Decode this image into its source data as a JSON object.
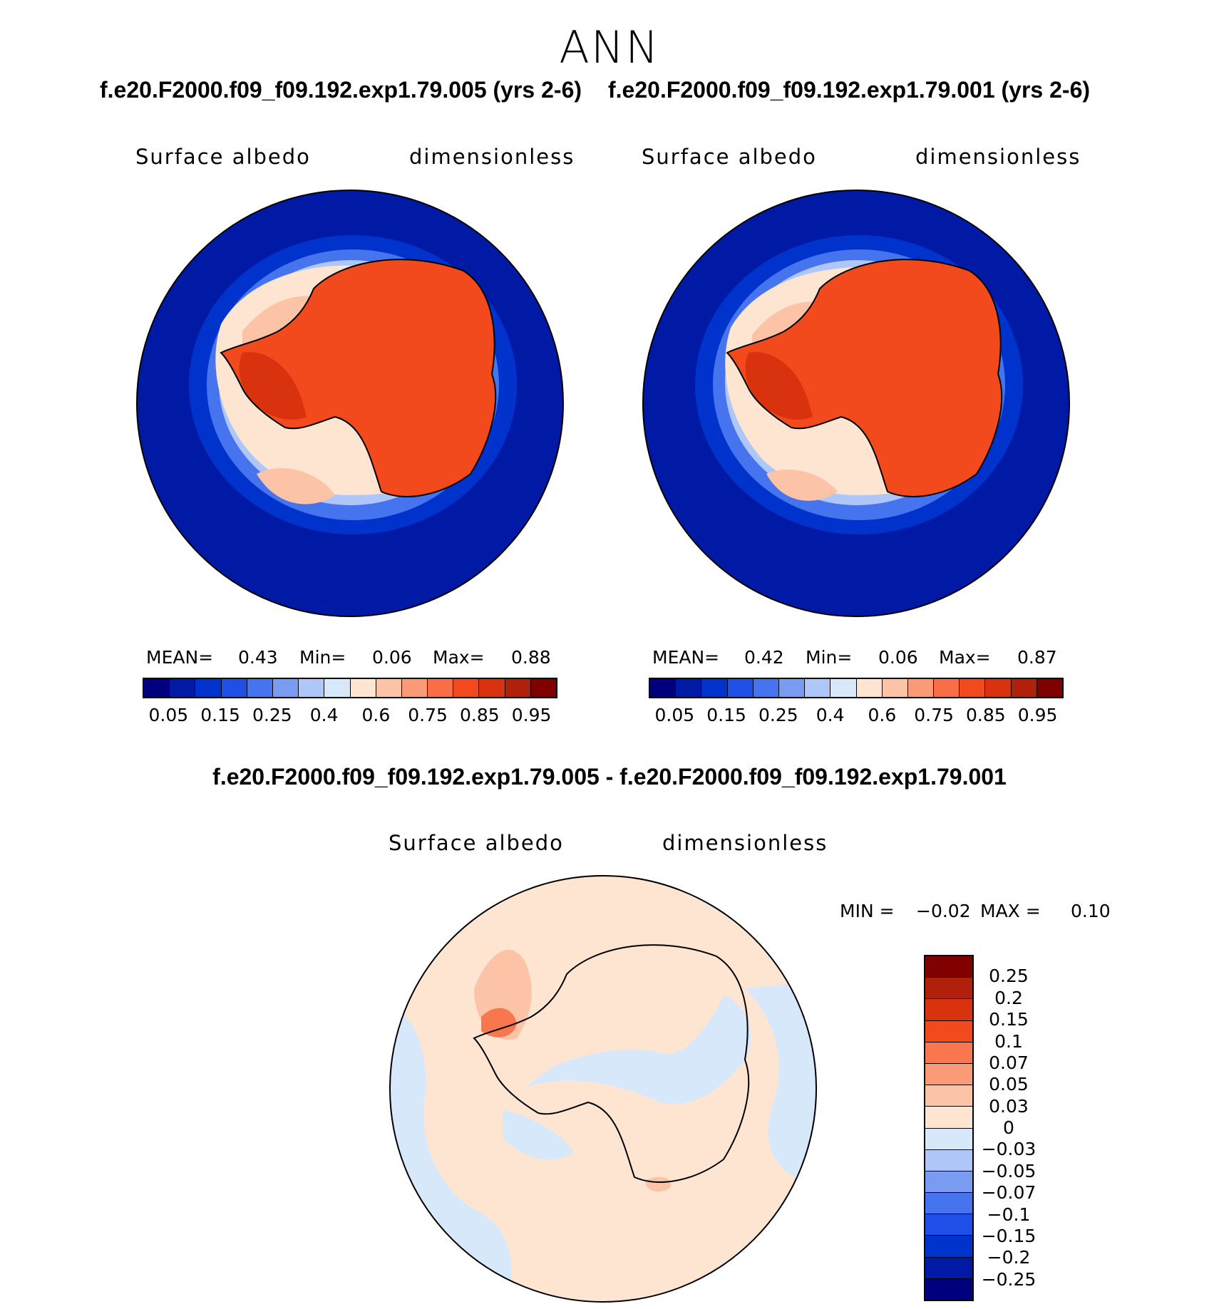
{
  "title": "ANN",
  "case_titles": {
    "left": "f.e20.F2000.f09_f09.192.exp1.79.005 (yrs 2-6)",
    "right": "f.e20.F2000.f09_f09.192.exp1.79.001 (yrs 2-6)",
    "diff": "f.e20.F2000.f09_f09.192.exp1.79.005 - f.e20.F2000.f09_f09.192.exp1.79.001"
  },
  "panels": {
    "left": {
      "variable": "Surface albedo",
      "units": "dimensionless",
      "mean_label": "MEAN=",
      "mean": "0.43",
      "min_label": "Min=",
      "min": "0.06",
      "max_label": "Max=",
      "max": "0.88"
    },
    "right": {
      "variable": "Surface albedo",
      "units": "dimensionless",
      "mean_label": "MEAN=",
      "mean": "0.42",
      "min_label": "Min=",
      "min": "0.06",
      "max_label": "Max=",
      "max": "0.87"
    },
    "diff": {
      "variable": "Surface albedo",
      "units": "dimensionless",
      "min_label": "MIN =",
      "min": "−0.02",
      "max_label": "MAX =",
      "max": "0.10"
    }
  },
  "colorbar_main": {
    "colors": [
      "#00007f",
      "#001aa6",
      "#0033cc",
      "#1f4fe6",
      "#4673ee",
      "#7a9bf2",
      "#afc6f8",
      "#d8e8fb",
      "#fde5d2",
      "#fcc3a6",
      "#fb9a76",
      "#f96d47",
      "#f24a1c",
      "#d9320f",
      "#b0200a",
      "#800000"
    ],
    "ticks": [
      "0.05",
      "0.15",
      "0.25",
      "0.4",
      "0.6",
      "0.75",
      "0.85",
      "0.95"
    ]
  },
  "colorbar_diff": {
    "colors": [
      "#800000",
      "#b0200a",
      "#d9320f",
      "#f24a1c",
      "#f9774f",
      "#fb9a76",
      "#fcc3a6",
      "#fde5d2",
      "#d8e8fb",
      "#afc6f8",
      "#7a9bf2",
      "#4673ee",
      "#1f4fe6",
      "#0033cc",
      "#001aa6",
      "#00007f"
    ],
    "ticks": [
      "0.25",
      "0.2",
      "0.15",
      "0.1",
      "0.07",
      "0.05",
      "0.03",
      "0",
      "−0.03",
      "−0.05",
      "−0.07",
      "−0.1",
      "−0.15",
      "−0.2",
      "−0.25"
    ]
  }
}
